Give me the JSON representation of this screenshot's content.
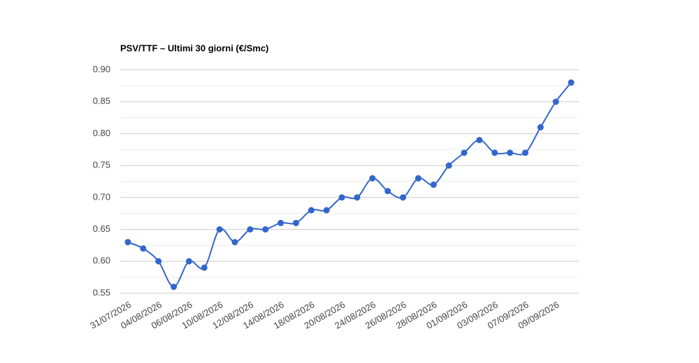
{
  "chart_data": {
    "type": "line",
    "title": "PSV/TTF – Ultimi 30 giorni (€/Smc)",
    "categories": [
      "31/07/2026",
      null,
      "04/08/2026",
      null,
      "06/08/2026",
      null,
      "10/08/2026",
      null,
      "12/08/2026",
      null,
      "14/08/2026",
      null,
      "18/08/2026",
      null,
      "20/08/2026",
      null,
      "24/08/2026",
      null,
      "26/08/2026",
      null,
      "28/08/2026",
      null,
      "01/09/2026",
      null,
      "03/09/2026",
      null,
      "07/09/2026",
      null,
      "09/09/2026",
      null
    ],
    "values": [
      0.63,
      0.62,
      0.6,
      0.56,
      0.6,
      0.59,
      0.65,
      0.63,
      0.65,
      0.65,
      0.66,
      0.66,
      0.68,
      0.68,
      0.7,
      0.7,
      0.73,
      0.71,
      0.7,
      0.73,
      0.72,
      0.75,
      0.77,
      0.79,
      0.77,
      0.77,
      0.77,
      0.81,
      0.85,
      0.88
    ],
    "color": "#3366cc",
    "ylim": [
      0.55,
      0.9
    ],
    "yticks": [
      {
        "value": 0.55,
        "label": "0.55"
      },
      {
        "value": 0.6,
        "label": "0.60"
      },
      {
        "value": 0.65,
        "label": "0.65"
      },
      {
        "value": 0.7,
        "label": "0.70"
      },
      {
        "value": 0.75,
        "label": "0.75"
      },
      {
        "value": 0.8,
        "label": "0.80"
      },
      {
        "value": 0.85,
        "label": "0.85"
      },
      {
        "value": 0.9,
        "label": "0.90"
      }
    ],
    "grid": true,
    "minor_grid": true
  }
}
